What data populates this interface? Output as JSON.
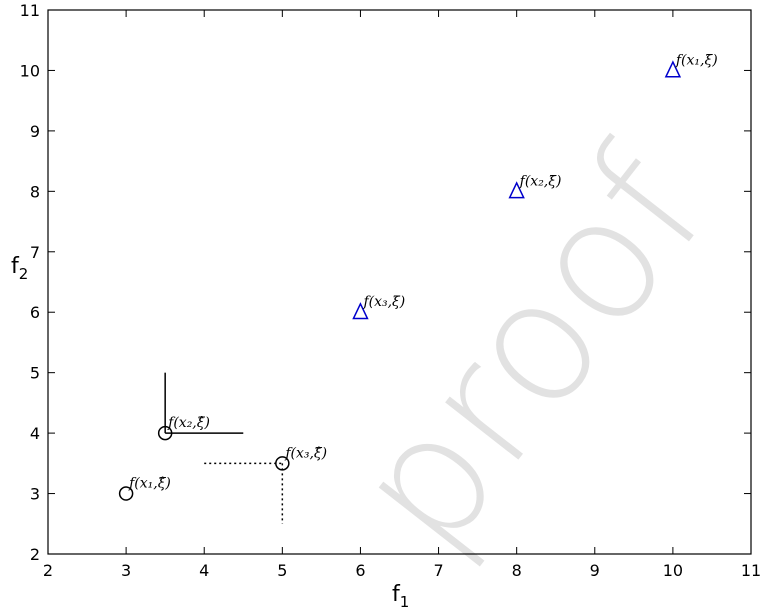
{
  "chart_data": {
    "type": "scatter",
    "xlim": [
      2,
      11
    ],
    "ylim": [
      2,
      11
    ],
    "x_ticks": [
      "2",
      "3",
      "4",
      "5",
      "6",
      "7",
      "8",
      "9",
      "10",
      "11"
    ],
    "y_ticks": [
      "2",
      "3",
      "4",
      "5",
      "6",
      "7",
      "8",
      "9",
      "10",
      "11"
    ],
    "xlabel": "f",
    "xlabel_sub": "1",
    "ylabel": "f",
    "ylabel_sub": "2",
    "grid": false,
    "series": [
      {
        "marker": "circle",
        "color": "#000000",
        "points": [
          {
            "x": 3,
            "y": 3,
            "label": "f(x₁,ξ̂)"
          },
          {
            "x": 3.5,
            "y": 4,
            "label": "f(x₂,ξ̂)"
          },
          {
            "x": 5,
            "y": 3.5,
            "label": "f(x₃,ξ̂)"
          }
        ]
      },
      {
        "marker": "triangle",
        "color": "#0000cc",
        "points": [
          {
            "x": 10,
            "y": 10,
            "label": "f(x₁,ξ̄)"
          },
          {
            "x": 8,
            "y": 8,
            "label": "f(x₂,ξ̄)"
          },
          {
            "x": 6,
            "y": 6,
            "label": "f(x₃,ξ̄)"
          }
        ]
      }
    ],
    "guide_lines": [
      {
        "style": "solid",
        "x1": 3.5,
        "y1": 4,
        "x2": 3.5,
        "y2": 5
      },
      {
        "style": "solid",
        "x1": 3.5,
        "y1": 4,
        "x2": 4.5,
        "y2": 4
      },
      {
        "style": "dotted",
        "x1": 4,
        "y1": 3.5,
        "x2": 5,
        "y2": 3.5
      },
      {
        "style": "dotted",
        "x1": 5,
        "y1": 3.5,
        "x2": 5,
        "y2": 2.5
      }
    ]
  },
  "watermark": {
    "text": "proof",
    "color": "#d9d9d9"
  }
}
